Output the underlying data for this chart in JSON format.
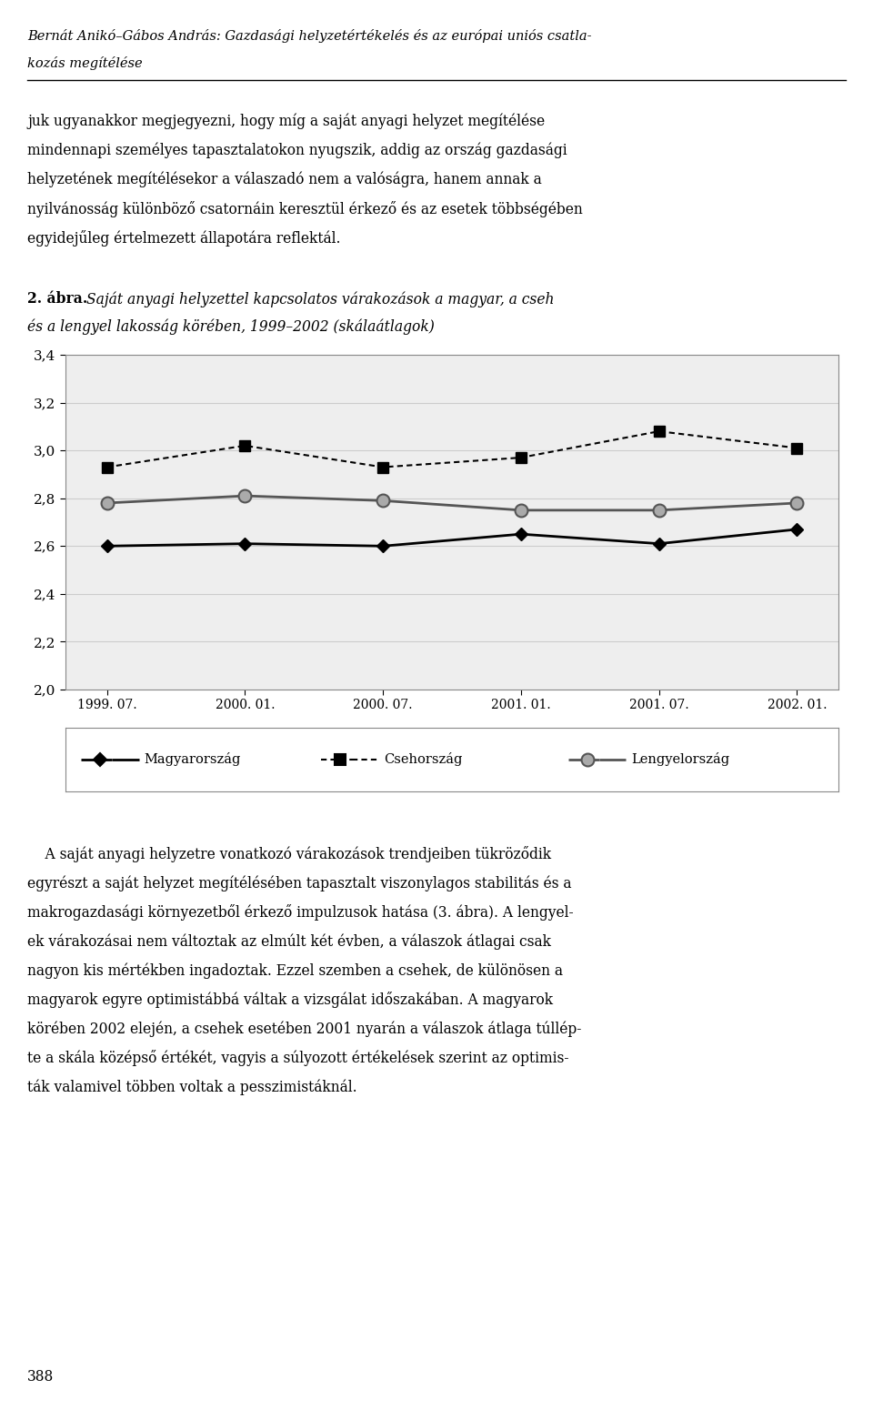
{
  "x_labels": [
    "1999. 07.",
    "2000. 01.",
    "2000. 07.",
    "2001. 01.",
    "2001. 07.",
    "2002. 01."
  ],
  "magyarorszag": [
    2.6,
    2.61,
    2.6,
    2.65,
    2.61,
    2.67
  ],
  "csehorszag": [
    2.93,
    3.02,
    2.93,
    2.97,
    3.08,
    3.01
  ],
  "lengyelorszag": [
    2.78,
    2.81,
    2.79,
    2.75,
    2.75,
    2.78
  ],
  "ylim_min": 2.0,
  "ylim_max": 3.4,
  "yticks": [
    2.0,
    2.2,
    2.4,
    2.6,
    2.8,
    3.0,
    3.2,
    3.4
  ],
  "ytick_labels": [
    "2,0",
    "2,2",
    "2,4",
    "2,6",
    "2,8",
    "3,0",
    "3,2",
    "3,4"
  ],
  "legend_labels": [
    "Magyarország",
    "Csehország",
    "Lengyelország"
  ],
  "header_italic": "Bernát Anikó–Gábos András: Gazdasági helyzetértékelés és az európai uniós csatla-",
  "header_italic2": "kozás megítélése",
  "para1_line1": "juk ugyanakkor megjegyezni, hogy míg a saját anyagi helyzet megítélése",
  "para1_line2": "mindennapi személyes tapasztalatokon nyugszik, addig az ország gazdasági",
  "para1_line3": "helyzetének megítélésekor a válaszadó nem a valóságra, hanem annak a",
  "para1_line4": "nyilvánosság különböző csatornáin keresztül érkező és az esetek többségében",
  "para1_line5": "egyidejűleg értelmezett állapotára reflektál.",
  "caption_bold": "2. ábra.",
  "caption_italic1": "Saját anyagi helyzettel kapcsolatos várakozások a magyar, a cseh",
  "caption_italic2": "és a lengyel lakosság körében, 1999–2002 (skálaátlagok)",
  "para2_line1": "    A saját anyagi helyzetre vonatkozó várakozások trendjeiben tükröződik",
  "para2_line2": "egyrészt a saját helyzet megítélésében tapasztalt viszonylagos stabilitás és a",
  "para2_line3": "makrogazdasági környezetből érkező impulzusok hatása (3. ábra). A lengyel-",
  "para2_line3b": "ek várakozásai nem változtak az elmúlt két évben, a válaszok átlagai csak",
  "para2_line4": "nagyon kis mértékben ingadoztak. Ezzel szemben a csehek, de különösen a",
  "para2_line5": "magyarok egyre optimistábbá váltak a vizsgálat időszakában. A magyarok",
  "para2_line6": "körében 2002 elején, a csehek esetében 2001 nyarán a válaszok átlaga túllép-",
  "para2_line7": "te a skála középső értékét, vagyis a súlyozott értékelések szerint az optimis-",
  "para2_line8": "ták valamivel többen voltak a pesszimistáknál.",
  "page_number": "388",
  "background_color": "#ffffff",
  "grid_color": "#cccccc",
  "chart_face_color": "#eeeeee"
}
